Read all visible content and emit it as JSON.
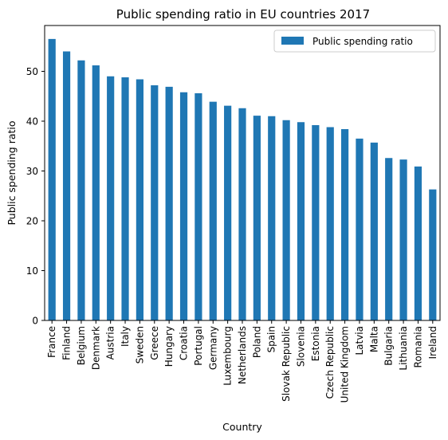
{
  "chart_data": {
    "type": "bar",
    "title": "Public spending ratio in EU countries 2017",
    "xlabel": "Country",
    "ylabel": "Public spending ratio",
    "ylim": [
      0,
      59.2
    ],
    "yticks": [
      0,
      10,
      20,
      30,
      40,
      50
    ],
    "grid": false,
    "legend_position": "top-right",
    "series": [
      {
        "name": "Public spending ratio",
        "color": "#1f77b4",
        "values": [
          56.5,
          54.0,
          52.2,
          51.2,
          49.0,
          48.8,
          48.4,
          47.2,
          46.9,
          45.8,
          45.6,
          43.9,
          43.1,
          42.6,
          41.1,
          41.0,
          40.2,
          39.8,
          39.2,
          38.8,
          38.4,
          36.5,
          35.7,
          32.6,
          32.3,
          30.9,
          26.3
        ]
      }
    ],
    "categories": [
      "France",
      "Finland",
      "Belgium",
      "Denmark",
      "Austria",
      "Italy",
      "Sweden",
      "Greece",
      "Hungary",
      "Croatia",
      "Portugal",
      "Germany",
      "Luxembourg",
      "Netherlands",
      "Poland",
      "Spain",
      "Slovak Republic",
      "Slovenia",
      "Estonia",
      "Czech Republic",
      "United Kingdom",
      "Latvia",
      "Malta",
      "Bulgaria",
      "Lithuania",
      "Romania",
      "Ireland"
    ]
  }
}
